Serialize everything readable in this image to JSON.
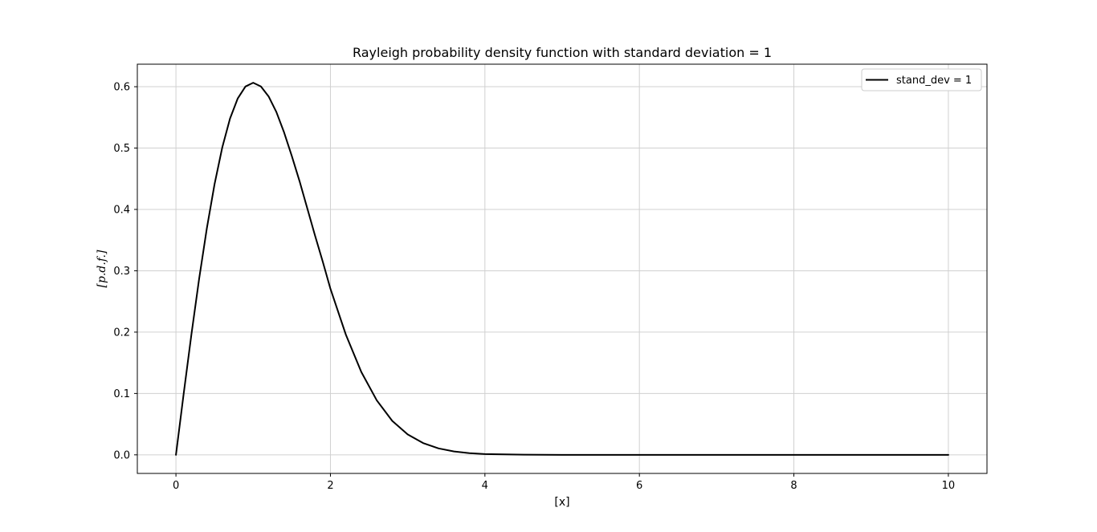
{
  "chart_data": {
    "type": "line",
    "title": "Rayleigh probability density function with standard deviation = 1",
    "xlabel": "[x]",
    "ylabel": "[p.d.f.]",
    "xlim": [
      -0.5,
      10.5
    ],
    "ylim": [
      -0.0303,
      0.6367
    ],
    "xticks": [
      0,
      2,
      4,
      6,
      8,
      10
    ],
    "xtick_labels": [
      "0",
      "2",
      "4",
      "6",
      "8",
      "10"
    ],
    "yticks": [
      0.0,
      0.1,
      0.2,
      0.3,
      0.4,
      0.5,
      0.6
    ],
    "ytick_labels": [
      "0.0",
      "0.1",
      "0.2",
      "0.3",
      "0.4",
      "0.5",
      "0.6"
    ],
    "grid": true,
    "legend_position": "top-right",
    "series": [
      {
        "name": "stand_dev = 1",
        "color": "#000000",
        "x": [
          0,
          0.1,
          0.2,
          0.3,
          0.4,
          0.5,
          0.6,
          0.7,
          0.8,
          0.9,
          1.0,
          1.1,
          1.2,
          1.3,
          1.4,
          1.5,
          1.6,
          1.7,
          1.8,
          1.9,
          2.0,
          2.2,
          2.4,
          2.6,
          2.8,
          3.0,
          3.2,
          3.4,
          3.6,
          3.8,
          4.0,
          4.5,
          5.0,
          6.0,
          7.0,
          8.0,
          9.0,
          10.0
        ],
        "y": [
          0.0,
          0.0995,
          0.196,
          0.2868,
          0.3692,
          0.4412,
          0.5012,
          0.5481,
          0.5809,
          0.6003,
          0.6065,
          0.6004,
          0.5841,
          0.5588,
          0.5255,
          0.487,
          0.4462,
          0.4019,
          0.3576,
          0.3151,
          0.2707,
          0.1958,
          0.135,
          0.0888,
          0.0554,
          0.0333,
          0.0192,
          0.0105,
          0.0055,
          0.0027,
          0.0013,
          0.0002,
          0.0,
          0.0,
          0.0,
          0.0,
          0.0,
          0.0
        ]
      }
    ]
  }
}
